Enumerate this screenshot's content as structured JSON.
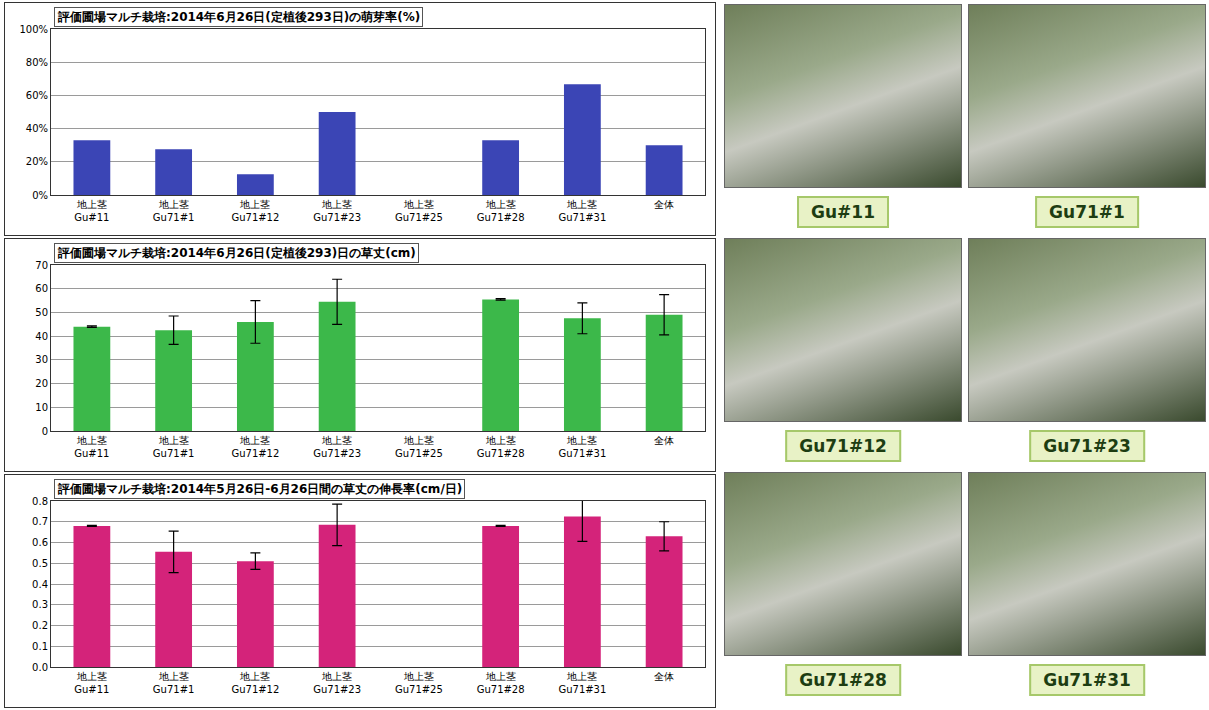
{
  "chart_data": [
    {
      "type": "bar",
      "title": "評価圃場マルチ栽培:2014年6月26日(定植後293日)の萌芽率(%)",
      "categories": [
        "地上茎\nGu#11",
        "地上茎\nGu71#1",
        "地上茎\nGu71#12",
        "地上茎\nGu71#23",
        "地上茎\nGu71#25",
        "地上茎\nGu71#28",
        "地上茎\nGu71#31",
        "全体"
      ],
      "values": [
        33,
        27.5,
        12.5,
        50,
        0,
        33,
        66.7,
        30
      ],
      "color": "#3b45b5",
      "ylim": [
        0,
        100
      ],
      "yticks": [
        {
          "value": 0,
          "label": "0%"
        },
        {
          "value": 20,
          "label": "20%"
        },
        {
          "value": 40,
          "label": "40%"
        },
        {
          "value": 60,
          "label": "60%"
        },
        {
          "value": 80,
          "label": "80%"
        },
        {
          "value": 100,
          "label": "100%"
        }
      ],
      "grid": true
    },
    {
      "type": "bar",
      "title": "評価圃場マルチ栽培:2014年6月26日(定植後293)日の草丈(cm)",
      "categories": [
        "地上茎\nGu#11",
        "地上茎\nGu71#1",
        "地上茎\nGu71#12",
        "地上茎\nGu71#23",
        "地上茎\nGu71#25",
        "地上茎\nGu71#28",
        "地上茎\nGu71#31",
        "全体"
      ],
      "values": [
        44,
        42.5,
        46,
        54.5,
        null,
        55.5,
        47.5,
        49
      ],
      "errors": [
        0.3,
        6,
        9,
        9.5,
        null,
        0.3,
        6.5,
        8.5
      ],
      "color": "#3cb84a",
      "ylim": [
        0,
        70
      ],
      "yticks": [
        0,
        10,
        20,
        30,
        40,
        50,
        60,
        70
      ],
      "grid": true
    },
    {
      "type": "bar",
      "title": "評価圃場マルチ栽培:2014年5月26日-6月26日間の草丈の伸長率(cm/日)",
      "categories": [
        "地上茎\nGu#11",
        "地上茎\nGu71#1",
        "地上茎\nGu71#12",
        "地上茎\nGu71#23",
        "地上茎\nGu71#25",
        "地上茎\nGu71#28",
        "地上茎\nGu71#31",
        "全体"
      ],
      "values": [
        0.68,
        0.555,
        0.51,
        0.685,
        null,
        0.68,
        0.725,
        0.63
      ],
      "errors": [
        0.003,
        0.1,
        0.04,
        0.1,
        null,
        0.003,
        0.12,
        0.07
      ],
      "color": "#d4237a",
      "ylim": [
        0,
        0.8
      ],
      "yticks": [
        {
          "value": 0,
          "label": "0.0"
        },
        0.1,
        0.2,
        0.3,
        0.4,
        0.5,
        0.6,
        0.7,
        0.8
      ],
      "grid": true
    }
  ],
  "photos": {
    "labels": [
      "Gu#11",
      "Gu71#1",
      "Gu71#12",
      "Gu71#23",
      "Gu71#28",
      "Gu71#31"
    ]
  }
}
